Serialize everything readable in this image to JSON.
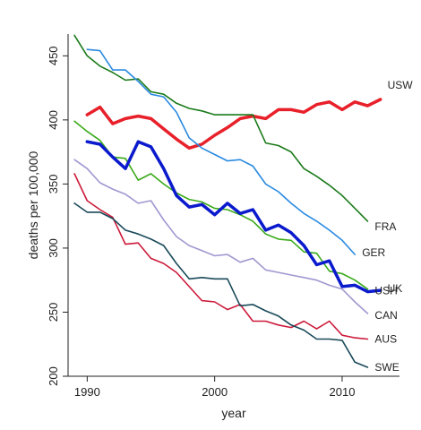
{
  "chart_data": {
    "type": "line",
    "xlabel": "year",
    "ylabel": "deaths per 100,000",
    "xlim": [
      1988.5,
      2014.5
    ],
    "ylim": [
      200,
      467
    ],
    "x_ticks": [
      "1990",
      "2000",
      "2010"
    ],
    "y_ticks": [
      "200",
      "250",
      "300",
      "350",
      "400",
      "450"
    ],
    "grid": false,
    "legend": "inline labels at line ends",
    "series": [
      {
        "name": "USW",
        "color": "#e8202a",
        "x": [
          1990,
          1991,
          1992,
          1993,
          1994,
          1995,
          1996,
          1997,
          1998,
          1999,
          2000,
          2001,
          2002,
          2003,
          2004,
          2005,
          2006,
          2007,
          2008,
          2009,
          2010,
          2011,
          2012,
          2013
        ],
        "values": [
          404,
          410,
          397,
          401,
          403,
          401,
          393,
          385,
          378,
          381,
          388,
          394,
          401,
          403,
          401,
          408,
          408,
          406,
          412,
          414,
          408,
          414,
          411,
          416
        ]
      },
      {
        "name": "FRA",
        "color": "#1a7a1a",
        "x": [
          1989,
          1990,
          1991,
          1992,
          1993,
          1994,
          1995,
          1996,
          1997,
          1998,
          1999,
          2000,
          2001,
          2002,
          2003,
          2004,
          2005,
          2006,
          2007,
          2008,
          2009,
          2010,
          2011,
          2012
        ],
        "values": [
          466,
          450,
          442,
          437,
          431,
          432,
          422,
          420,
          413,
          409,
          407,
          404,
          404,
          404,
          404,
          382,
          380,
          375,
          362,
          356,
          349,
          341,
          331,
          321
        ]
      },
      {
        "name": "GER",
        "color": "#2a8ae0",
        "x": [
          1990,
          1991,
          1992,
          1993,
          1994,
          1995,
          1996,
          1997,
          1998,
          1999,
          2000,
          2001,
          2002,
          2003,
          2004,
          2005,
          2006,
          2007,
          2008,
          2009,
          2010,
          2011
        ],
        "values": [
          455,
          454,
          439,
          439,
          430,
          420,
          418,
          406,
          386,
          378,
          373,
          368,
          369,
          364,
          350,
          344,
          335,
          327,
          321,
          314,
          306,
          295
        ]
      },
      {
        "name": "USH",
        "color": "#3aaa1a",
        "x": [
          1989,
          1990,
          1991,
          1992,
          1993,
          1994,
          1995,
          1996,
          1997,
          1998,
          1999,
          2000,
          2001,
          2002,
          2003,
          2004,
          2005,
          2006,
          2007,
          2008,
          2009,
          2010,
          2011,
          2012
        ],
        "values": [
          399,
          391,
          384,
          371,
          370,
          353,
          358,
          350,
          343,
          338,
          336,
          331,
          330,
          326,
          321,
          311,
          307,
          306,
          297,
          296,
          282,
          280,
          275,
          268
        ]
      },
      {
        "name": "UK",
        "color": "#0a1acc",
        "x": [
          1990,
          1991,
          1992,
          1993,
          1994,
          1995,
          1996,
          1997,
          1998,
          1999,
          2000,
          2001,
          2002,
          2003,
          2004,
          2005,
          2006,
          2007,
          2008,
          2009,
          2010,
          2011,
          2012,
          2013
        ],
        "values": [
          383,
          381,
          371,
          362,
          383,
          379,
          362,
          341,
          332,
          334,
          326,
          335,
          327,
          330,
          314,
          318,
          312,
          302,
          287,
          290,
          270,
          271,
          266,
          267
        ]
      },
      {
        "name": "CAN",
        "color": "#a098d0",
        "x": [
          1989,
          1990,
          1991,
          1992,
          1993,
          1994,
          1995,
          1996,
          1997,
          1998,
          1999,
          2000,
          2001,
          2002,
          2003,
          2004,
          2005,
          2006,
          2007,
          2008,
          2009,
          2010,
          2011,
          2012
        ],
        "values": [
          369,
          362,
          351,
          346,
          342,
          335,
          337,
          322,
          309,
          302,
          298,
          294,
          295,
          289,
          292,
          283,
          281,
          279,
          277,
          275,
          271,
          268,
          258,
          249
        ]
      },
      {
        "name": "AUS",
        "color": "#cc1a3a",
        "x": [
          1989,
          1990,
          1991,
          1992,
          1993,
          1994,
          1995,
          1996,
          1997,
          1998,
          1999,
          2000,
          2001,
          2002,
          2003,
          2004,
          2005,
          2006,
          2007,
          2008,
          2009,
          2010,
          2011,
          2012
        ],
        "values": [
          358,
          337,
          330,
          324,
          303,
          304,
          292,
          288,
          281,
          270,
          259,
          258,
          252,
          256,
          243,
          243,
          240,
          238,
          243,
          237,
          243,
          232,
          230,
          229
        ]
      },
      {
        "name": "SWE",
        "color": "#1a4a5a",
        "x": [
          1989,
          1990,
          1991,
          1992,
          1993,
          1994,
          1995,
          1996,
          1997,
          1998,
          1999,
          2000,
          2001,
          2002,
          2003,
          2004,
          2005,
          2006,
          2007,
          2008,
          2009,
          2010,
          2011,
          2012
        ],
        "values": [
          335,
          328,
          328,
          323,
          314,
          311,
          307,
          302,
          288,
          276,
          277,
          276,
          276,
          255,
          256,
          251,
          247,
          240,
          236,
          229,
          229,
          228,
          211,
          207
        ]
      }
    ]
  }
}
